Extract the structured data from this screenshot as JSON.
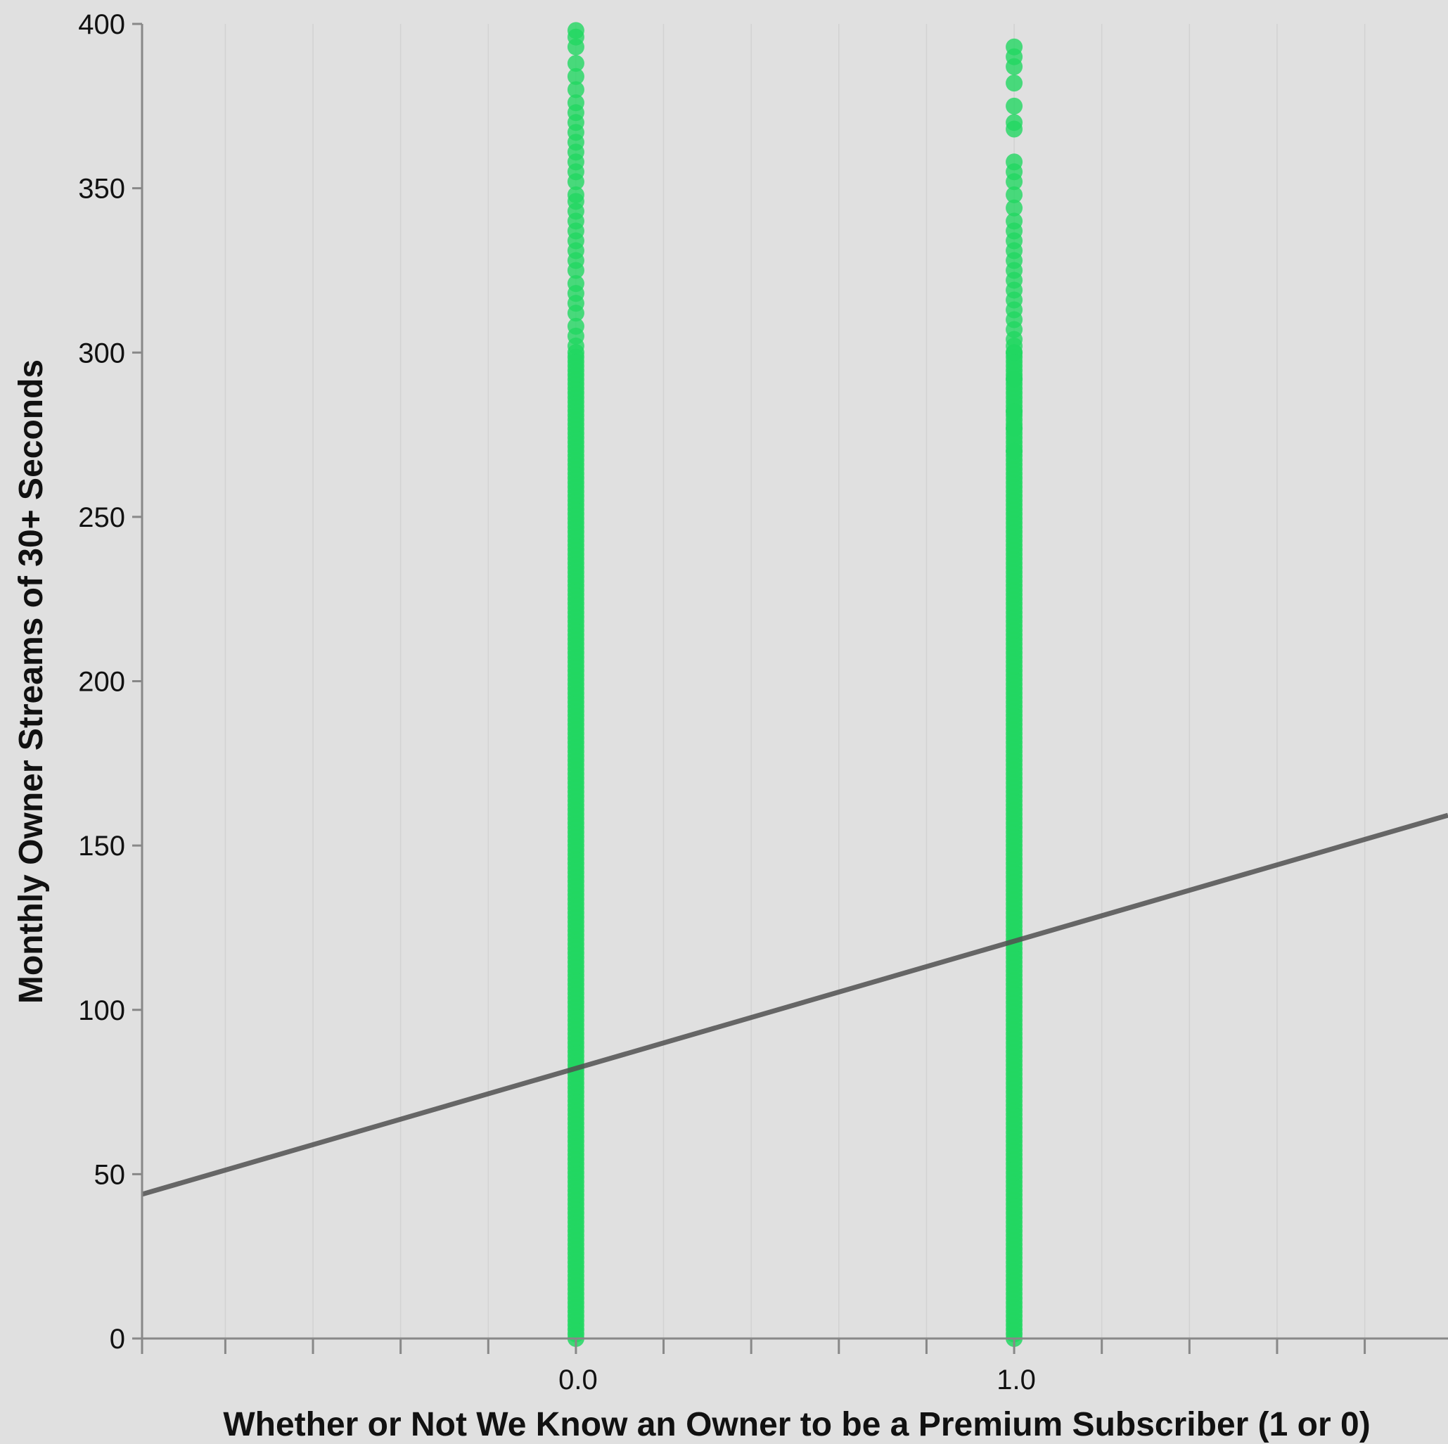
{
  "chart_data": {
    "type": "scatter",
    "title": "",
    "xlabel": "Whether or Not We Know an Owner to be a Premium Subscriber (1 or 0)",
    "ylabel": "Monthly Owner Streams of 30+ Seconds",
    "xlim": [
      -0.99,
      1.99
    ],
    "ylim": [
      0,
      400
    ],
    "x_ticks": [
      {
        "value": 0,
        "label": "0.0"
      },
      {
        "value": 1,
        "label": "1.0"
      }
    ],
    "x_minor_ticks": [
      -0.99,
      -0.8,
      -0.6,
      -0.4,
      -0.2,
      0.2,
      0.4,
      0.6,
      0.8,
      1.2,
      1.4,
      1.6,
      1.8
    ],
    "y_ticks": [
      {
        "value": 0,
        "label": "0"
      },
      {
        "value": 50,
        "label": "50"
      },
      {
        "value": 100,
        "label": "100"
      },
      {
        "value": 150,
        "label": "150"
      },
      {
        "value": 200,
        "label": "200"
      },
      {
        "value": 250,
        "label": "250"
      },
      {
        "value": 300,
        "label": "300"
      },
      {
        "value": 350,
        "label": "350"
      },
      {
        "value": 400,
        "label": "400"
      }
    ],
    "grid": true,
    "legend": "none",
    "colors": {
      "background": "#e0e0e0",
      "points": "#22d762",
      "trendline": "#505050",
      "axis": "#888888",
      "grid": "#d2d2d2"
    },
    "series": [
      {
        "x": 0,
        "dense_range": [
          0,
          300
        ],
        "values": [
          302,
          305,
          308,
          312,
          315,
          318,
          321,
          325,
          328,
          331,
          334,
          337,
          340,
          343,
          346,
          348,
          352,
          355,
          358,
          361,
          364,
          367,
          370,
          373,
          376,
          380,
          384,
          388,
          393,
          396,
          398
        ]
      },
      {
        "x": 1,
        "dense_range": [
          0,
          300
        ],
        "values": [
          300,
          302,
          304,
          307,
          310,
          313,
          316,
          319,
          322,
          325,
          328,
          331,
          334,
          337,
          340,
          344,
          348,
          352,
          355,
          358,
          368,
          370,
          375,
          382,
          387,
          390,
          393,
          277,
          282,
          292,
          270
        ]
      }
    ],
    "trendline": {
      "slope": 38.7,
      "intercept": 82.2,
      "x_range": [
        -0.99,
        1.99
      ]
    }
  }
}
